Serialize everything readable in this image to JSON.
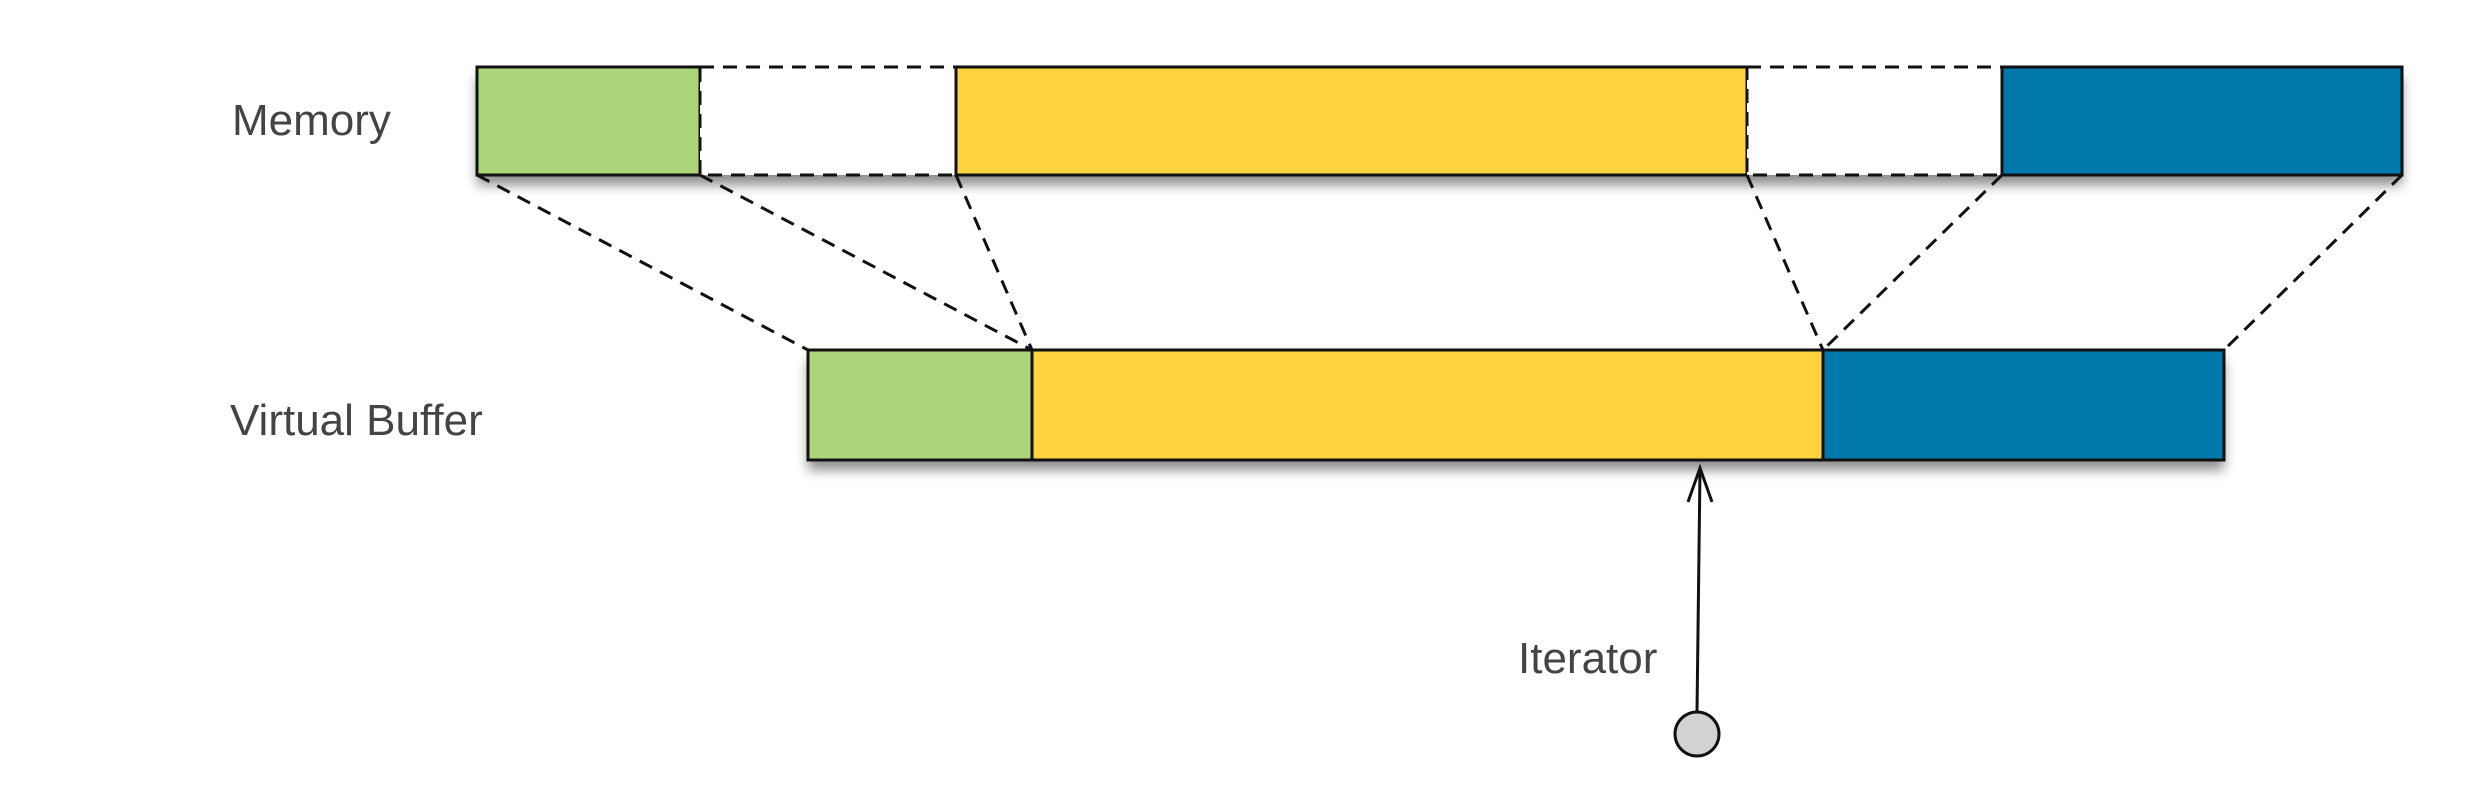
{
  "labels": {
    "memory": "Memory",
    "virtual_buffer": "Virtual Buffer",
    "iterator": "Iterator"
  },
  "colors": {
    "green": "#acd57a",
    "yellow": "#fdd440",
    "blue": "#0178ab",
    "empty": "#ffffff",
    "outline": "#111111",
    "iterator_handle": "#d2d2d2",
    "text": "#444444"
  },
  "memory_segments": [
    {
      "id": "green",
      "kind": "used"
    },
    {
      "id": "gap-1",
      "kind": "free"
    },
    {
      "id": "yellow",
      "kind": "used"
    },
    {
      "id": "gap-2",
      "kind": "free"
    },
    {
      "id": "blue",
      "kind": "used"
    }
  ],
  "buffer_segments": [
    {
      "id": "green"
    },
    {
      "id": "yellow"
    },
    {
      "id": "blue"
    }
  ]
}
